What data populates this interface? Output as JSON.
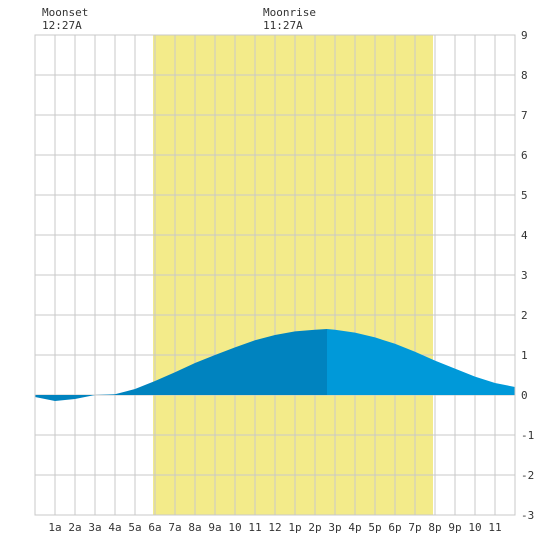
{
  "moon": {
    "moonset": {
      "label": "Moonset",
      "time": "12:27A"
    },
    "moonrise": {
      "label": "Moonrise",
      "time": "11:27A"
    }
  },
  "colors": {
    "daylight": "#f3eb8a",
    "tide_before_peak": "#0083bf",
    "tide_after_peak": "#0099d9",
    "grid": "#c8c8c8",
    "zero_line": "#555555"
  },
  "chart_data": {
    "type": "area",
    "title": "",
    "xlabel": "",
    "ylabel": "",
    "xlim": [
      0,
      24
    ],
    "ylim": [
      -3,
      9
    ],
    "x_ticks": [
      {
        "x": 1,
        "label": "1a"
      },
      {
        "x": 2,
        "label": "2a"
      },
      {
        "x": 3,
        "label": "3a"
      },
      {
        "x": 4,
        "label": "4a"
      },
      {
        "x": 5,
        "label": "5a"
      },
      {
        "x": 6,
        "label": "6a"
      },
      {
        "x": 7,
        "label": "7a"
      },
      {
        "x": 8,
        "label": "8a"
      },
      {
        "x": 9,
        "label": "9a"
      },
      {
        "x": 10,
        "label": "10"
      },
      {
        "x": 11,
        "label": "11"
      },
      {
        "x": 12,
        "label": "12"
      },
      {
        "x": 13,
        "label": "1p"
      },
      {
        "x": 14,
        "label": "2p"
      },
      {
        "x": 15,
        "label": "3p"
      },
      {
        "x": 16,
        "label": "4p"
      },
      {
        "x": 17,
        "label": "5p"
      },
      {
        "x": 18,
        "label": "6p"
      },
      {
        "x": 19,
        "label": "7p"
      },
      {
        "x": 20,
        "label": "8p"
      },
      {
        "x": 21,
        "label": "9p"
      },
      {
        "x": 22,
        "label": "10"
      },
      {
        "x": 23,
        "label": "11"
      }
    ],
    "y_ticks": [
      -3,
      -2,
      -1,
      0,
      1,
      2,
      3,
      4,
      5,
      6,
      7,
      8,
      9
    ],
    "grid": true,
    "daylight": {
      "start": 5.9,
      "end": 19.9
    },
    "high_tide_x": 14.6,
    "series": [
      {
        "x": [
          0,
          1,
          2,
          3,
          4,
          5,
          6,
          7,
          8,
          9,
          10,
          11,
          12,
          13,
          14,
          14.6,
          15,
          16,
          17,
          18,
          19,
          20,
          21,
          22,
          23,
          24
        ],
        "y": [
          -0.05,
          -0.15,
          -0.1,
          0.0,
          0.02,
          0.15,
          0.35,
          0.57,
          0.8,
          1.0,
          1.19,
          1.37,
          1.5,
          1.59,
          1.63,
          1.65,
          1.63,
          1.56,
          1.44,
          1.28,
          1.08,
          0.86,
          0.66,
          0.46,
          0.3,
          0.2
        ]
      }
    ]
  }
}
